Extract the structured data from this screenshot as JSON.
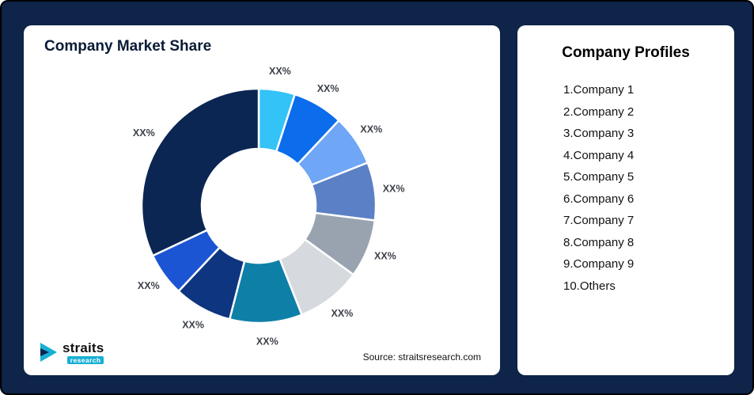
{
  "page": {
    "background": "#0E2448",
    "border_color": "#000000",
    "card_color": "#FFFFFF"
  },
  "chart_card": {
    "title": "Company Market Share",
    "source": "Source: straitsresearch.com"
  },
  "logo": {
    "brand": "straits",
    "sub": "research",
    "icon": "straits-arrow-icon",
    "accent": "#17AFD4",
    "dark": "#0B2653"
  },
  "profiles_card": {
    "title": "Company Profiles",
    "items": [
      "1.Company 1",
      "2.Company 2",
      "3.Company 3",
      "4.Company 4",
      "5.Company 5",
      "6.Company 6",
      "7.Company 7",
      "8.Company 8",
      "9.Company 9",
      "10.Others"
    ]
  },
  "chart_data": {
    "type": "pie",
    "title": "Company Market Share",
    "donut": true,
    "start_angle_deg": 0,
    "direction": "clockwise",
    "inner_radius_ratio": 0.49,
    "label_color": "#3D4149",
    "legend_position": "none",
    "segments": [
      {
        "label": "XX%",
        "value": 5,
        "color": "#33C3F7"
      },
      {
        "label": "XX%",
        "value": 7,
        "color": "#0B6CEC"
      },
      {
        "label": "XX%",
        "value": 7,
        "color": "#6FA6F5"
      },
      {
        "label": "XX%",
        "value": 8,
        "color": "#5C80C5"
      },
      {
        "label": "XX%",
        "value": 8,
        "color": "#99A3B0"
      },
      {
        "label": "XX%",
        "value": 9,
        "color": "#D6DADF"
      },
      {
        "label": "XX%",
        "value": 10,
        "color": "#0E80A7"
      },
      {
        "label": "XX%",
        "value": 8,
        "color": "#0D3580"
      },
      {
        "label": "XX%",
        "value": 6,
        "color": "#1C55D4"
      },
      {
        "label": "XX%",
        "value": 32,
        "color": "#0B2653"
      }
    ]
  }
}
